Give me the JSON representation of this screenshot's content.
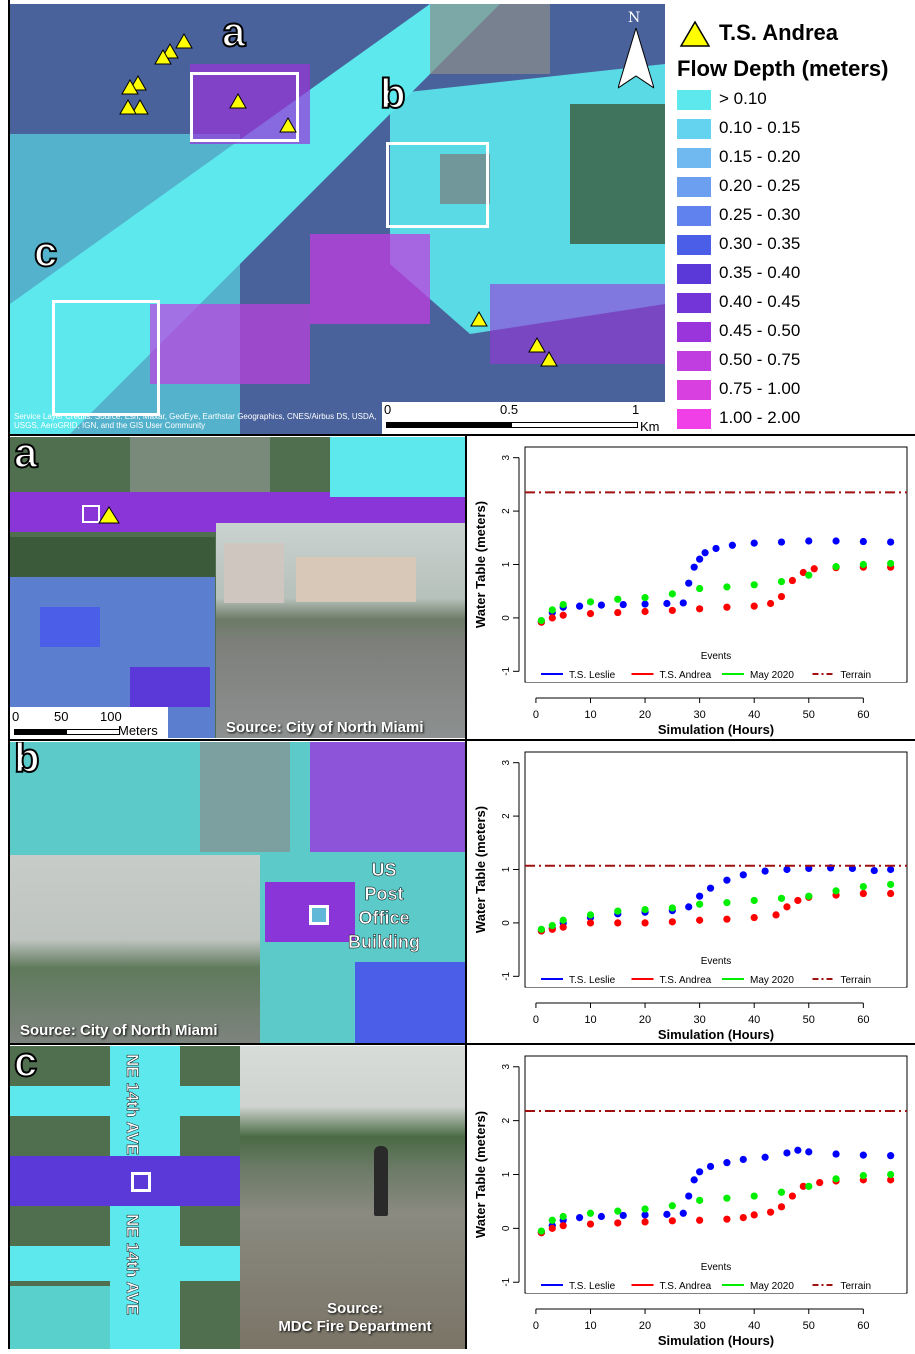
{
  "map": {
    "north_symbol": "N",
    "legend": {
      "marker_label": "T.S. Andrea",
      "title": "Flow Depth (meters)",
      "classes": [
        {
          "label": "> 0.10",
          "color": "#5ce8ec"
        },
        {
          "label": "0.10 - 0.15",
          "color": "#63d3f0"
        },
        {
          "label": "0.15 - 0.20",
          "color": "#6fb9f0"
        },
        {
          "label": "0.20 - 0.25",
          "color": "#6d9ff0"
        },
        {
          "label": "0.25 - 0.30",
          "color": "#5f82ee"
        },
        {
          "label": "0.30 - 0.35",
          "color": "#4a5ee8"
        },
        {
          "label": "0.35 - 0.40",
          "color": "#5a39d8"
        },
        {
          "label": "0.40 - 0.45",
          "color": "#7335d8"
        },
        {
          "label": "0.45 - 0.50",
          "color": "#9a35dc"
        },
        {
          "label": "0.50 - 0.75",
          "color": "#c03ee0"
        },
        {
          "label": "0.75 - 1.00",
          "color": "#d940e0"
        },
        {
          "label": "1.00 - 2.00",
          "color": "#f13fe8"
        }
      ]
    },
    "letters": {
      "a": "a",
      "b": "b",
      "c": "c"
    },
    "scalebar": {
      "ticks": [
        "0",
        "0.5",
        "1"
      ],
      "unit": "Km"
    },
    "credits": "Service Layer Credits: Source: Esri, Maxar, GeoEye, Earthstar Geographics, CNES/Airbus DS, USDA, USGS, AeroGRID, IGN, and the GIS User Community"
  },
  "panels": {
    "a": {
      "letter": "a",
      "scalebar": {
        "ticks": [
          "0",
          "50",
          "100"
        ],
        "unit": "Meters"
      },
      "photo_caption": "Source: City of North Miami"
    },
    "b": {
      "letter": "b",
      "photo_caption": "Source: City of North Miami",
      "label_lines": [
        "US",
        "Post",
        "Office",
        "Building"
      ]
    },
    "c": {
      "letter": "c",
      "road_top": "NE 14th AVE",
      "road_bottom": "NE 14th AVE",
      "photo_caption_lines": [
        "Source:",
        "MDC Fire Department"
      ]
    }
  },
  "chart_data": [
    {
      "type": "scatter",
      "xlabel": "Simulation (Hours)",
      "ylabel": "Water Table (meters)",
      "xticks": [
        "0",
        "10",
        "20",
        "30",
        "40",
        "50",
        "60"
      ],
      "yticks": [
        "-1",
        "0",
        "1",
        "2",
        "3"
      ],
      "xlim": [
        -2,
        68
      ],
      "ylim": [
        -1.2,
        3.2
      ],
      "legend_title": "Events",
      "series": [
        {
          "name": "T.S. Leslie",
          "color": "#0000ff",
          "x": [
            1,
            3,
            5,
            8,
            12,
            16,
            20,
            24,
            27,
            28,
            29,
            30,
            31,
            33,
            36,
            40,
            45,
            50,
            55,
            60,
            65
          ],
          "y": [
            -0.08,
            0.1,
            0.2,
            0.22,
            0.24,
            0.25,
            0.26,
            0.27,
            0.28,
            0.65,
            0.95,
            1.1,
            1.22,
            1.3,
            1.36,
            1.4,
            1.42,
            1.44,
            1.44,
            1.43,
            1.42
          ]
        },
        {
          "name": "T.S. Andrea",
          "color": "#ff0000",
          "x": [
            1,
            3,
            5,
            10,
            15,
            20,
            25,
            30,
            35,
            40,
            43,
            45,
            47,
            49,
            51,
            55,
            60,
            65
          ],
          "y": [
            -0.08,
            0.0,
            0.05,
            0.08,
            0.1,
            0.12,
            0.14,
            0.17,
            0.2,
            0.22,
            0.27,
            0.4,
            0.7,
            0.85,
            0.92,
            0.94,
            0.95,
            0.95
          ]
        },
        {
          "name": "May 2020",
          "color": "#00ee00",
          "x": [
            1,
            3,
            5,
            10,
            15,
            20,
            25,
            30,
            35,
            40,
            45,
            50,
            55,
            60,
            65
          ],
          "y": [
            -0.05,
            0.15,
            0.25,
            0.3,
            0.35,
            0.38,
            0.45,
            0.55,
            0.58,
            0.62,
            0.68,
            0.8,
            0.96,
            1.0,
            1.02
          ]
        },
        {
          "name": "Terrain",
          "color": "#a01010",
          "x": [
            -2,
            68
          ],
          "y": [
            2.35,
            2.35
          ]
        }
      ]
    },
    {
      "type": "scatter",
      "xlabel": "Simulation (Hours)",
      "ylabel": "Water Table (meters)",
      "xticks": [
        "0",
        "10",
        "20",
        "30",
        "40",
        "50",
        "60"
      ],
      "yticks": [
        "-1",
        "0",
        "1",
        "2",
        "3"
      ],
      "xlim": [
        -2,
        68
      ],
      "ylim": [
        -1.2,
        3.2
      ],
      "legend_title": "Events",
      "series": [
        {
          "name": "T.S. Leslie",
          "color": "#0000ff",
          "x": [
            1,
            3,
            5,
            10,
            15,
            20,
            25,
            28,
            30,
            32,
            35,
            38,
            42,
            46,
            50,
            54,
            58,
            62,
            65
          ],
          "y": [
            -0.15,
            -0.1,
            0.0,
            0.1,
            0.17,
            0.2,
            0.23,
            0.3,
            0.5,
            0.65,
            0.8,
            0.9,
            0.97,
            1.0,
            1.02,
            1.03,
            1.02,
            0.98,
            1.0
          ]
        },
        {
          "name": "T.S. Andrea",
          "color": "#ff0000",
          "x": [
            1,
            3,
            5,
            10,
            15,
            20,
            25,
            30,
            35,
            40,
            44,
            46,
            48,
            50,
            55,
            60,
            65
          ],
          "y": [
            -0.15,
            -0.12,
            -0.08,
            0.0,
            0.0,
            0.0,
            0.02,
            0.05,
            0.07,
            0.1,
            0.15,
            0.3,
            0.42,
            0.48,
            0.52,
            0.55,
            0.55
          ]
        },
        {
          "name": "May 2020",
          "color": "#00ee00",
          "x": [
            1,
            3,
            5,
            10,
            15,
            20,
            25,
            30,
            35,
            40,
            45,
            50,
            55,
            60,
            65
          ],
          "y": [
            -0.12,
            -0.05,
            0.05,
            0.15,
            0.22,
            0.25,
            0.28,
            0.35,
            0.38,
            0.42,
            0.46,
            0.5,
            0.6,
            0.68,
            0.72
          ]
        },
        {
          "name": "Terrain",
          "color": "#a01010",
          "x": [
            -2,
            68
          ],
          "y": [
            1.07,
            1.07
          ]
        }
      ]
    },
    {
      "type": "scatter",
      "xlabel": "Simulation (Hours)",
      "ylabel": "Water Table (meters)",
      "xticks": [
        "0",
        "10",
        "20",
        "30",
        "40",
        "50",
        "60"
      ],
      "yticks": [
        "-1",
        "0",
        "1",
        "2",
        "3"
      ],
      "xlim": [
        -2,
        68
      ],
      "ylim": [
        -1.2,
        3.2
      ],
      "legend_title": "Events",
      "series": [
        {
          "name": "T.S. Leslie",
          "color": "#0000ff",
          "x": [
            1,
            3,
            5,
            8,
            12,
            16,
            20,
            24,
            27,
            28,
            29,
            30,
            32,
            35,
            38,
            42,
            46,
            48,
            50,
            55,
            60,
            65
          ],
          "y": [
            -0.08,
            0.05,
            0.15,
            0.2,
            0.22,
            0.24,
            0.25,
            0.26,
            0.28,
            0.6,
            0.9,
            1.05,
            1.15,
            1.22,
            1.28,
            1.32,
            1.4,
            1.45,
            1.42,
            1.38,
            1.36,
            1.35
          ]
        },
        {
          "name": "T.S. Andrea",
          "color": "#ff0000",
          "x": [
            1,
            3,
            5,
            10,
            15,
            20,
            25,
            30,
            35,
            38,
            40,
            43,
            45,
            47,
            49,
            52,
            55,
            60,
            65
          ],
          "y": [
            -0.08,
            0.0,
            0.05,
            0.08,
            0.1,
            0.12,
            0.14,
            0.15,
            0.17,
            0.2,
            0.25,
            0.3,
            0.4,
            0.6,
            0.78,
            0.85,
            0.88,
            0.9,
            0.9
          ]
        },
        {
          "name": "May 2020",
          "color": "#00ee00",
          "x": [
            1,
            3,
            5,
            10,
            15,
            20,
            25,
            30,
            35,
            40,
            45,
            50,
            55,
            60,
            65
          ],
          "y": [
            -0.05,
            0.15,
            0.22,
            0.28,
            0.32,
            0.36,
            0.42,
            0.52,
            0.56,
            0.6,
            0.67,
            0.78,
            0.92,
            0.98,
            1.0
          ]
        },
        {
          "name": "Terrain",
          "color": "#a01010",
          "x": [
            -2,
            68
          ],
          "y": [
            2.18,
            2.18
          ]
        }
      ]
    }
  ]
}
